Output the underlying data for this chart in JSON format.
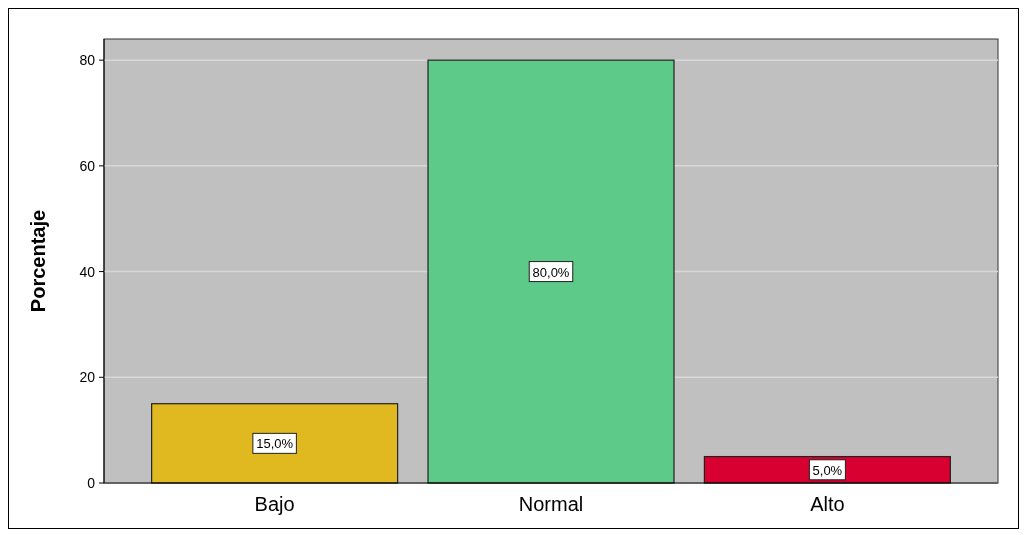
{
  "chart_data": {
    "type": "bar",
    "ylabel": "Porcentaje",
    "categories": [
      "Bajo",
      "Normal",
      "Alto"
    ],
    "values": [
      15,
      80,
      5
    ],
    "colors": [
      "#e0b820",
      "#5dca8a",
      "#d80030"
    ],
    "value_labels": [
      "15,0%",
      "80,0%",
      "5,0%"
    ],
    "ylim": [
      0,
      84
    ],
    "yticks": [
      0,
      20,
      40,
      60,
      80
    ],
    "grid": "y"
  }
}
